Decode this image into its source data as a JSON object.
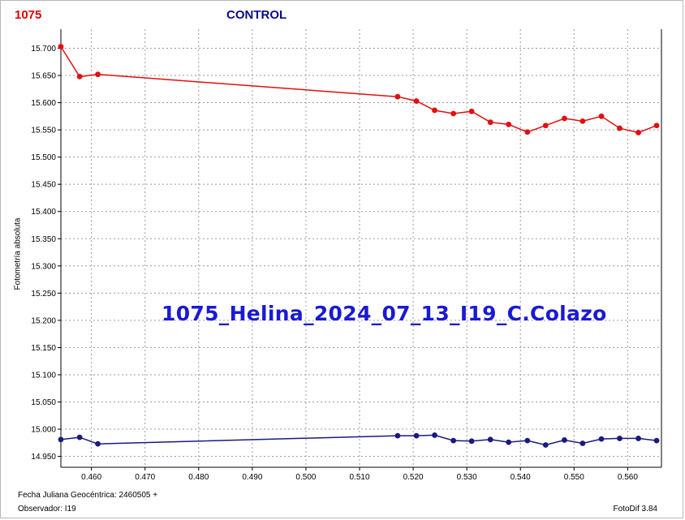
{
  "header": {
    "object_label": "1075",
    "title": "CONTROL"
  },
  "watermark": "1075_Helina_2024_07_13_I19_C.Colazo",
  "footer": {
    "jd_label": "Fecha Juliana Geocéntrica: 2460505 +",
    "observer": "Observador: I19",
    "software": "FotoDif 3.84"
  },
  "chart_data": {
    "type": "line",
    "title": "CONTROL",
    "xlabel": "Fecha Juliana Geocéntrica: 2460505 +",
    "ylabel": "Fotometría absoluta",
    "xlim": [
      0.4543,
      0.5663
    ],
    "ylim": [
      15.735,
      14.93
    ],
    "y_inverted": true,
    "grid": true,
    "xticks": [
      "0.460",
      "0.470",
      "0.480",
      "0.490",
      "0.500",
      "0.510",
      "0.520",
      "0.530",
      "0.540",
      "0.550",
      "0.560"
    ],
    "yticks": [
      "14.950",
      "15.000",
      "15.050",
      "15.100",
      "15.150",
      "15.200",
      "15.250",
      "15.300",
      "15.350",
      "15.400",
      "15.450",
      "15.500",
      "15.550",
      "15.600",
      "15.650",
      "15.700"
    ],
    "x": [
      0.4543,
      0.4578,
      0.4612,
      0.5171,
      0.5206,
      0.524,
      0.5275,
      0.5309,
      0.5344,
      0.5378,
      0.5413,
      0.5447,
      0.5482,
      0.5516,
      0.5551,
      0.5585,
      0.562,
      0.5654
    ],
    "series": [
      {
        "color": "#1a1a7e",
        "values": [
          14.981,
          14.985,
          14.973,
          14.988,
          14.988,
          14.989,
          14.979,
          14.978,
          14.981,
          14.976,
          14.979,
          14.971,
          14.98,
          14.974,
          14.982,
          14.983,
          14.983,
          14.979
        ]
      },
      {
        "color": "#e01010",
        "values": [
          15.703,
          15.648,
          15.652,
          15.611,
          15.603,
          15.586,
          15.58,
          15.584,
          15.564,
          15.56,
          15.546,
          15.558,
          15.571,
          15.566,
          15.575,
          15.553,
          15.545,
          15.558
        ]
      }
    ]
  }
}
